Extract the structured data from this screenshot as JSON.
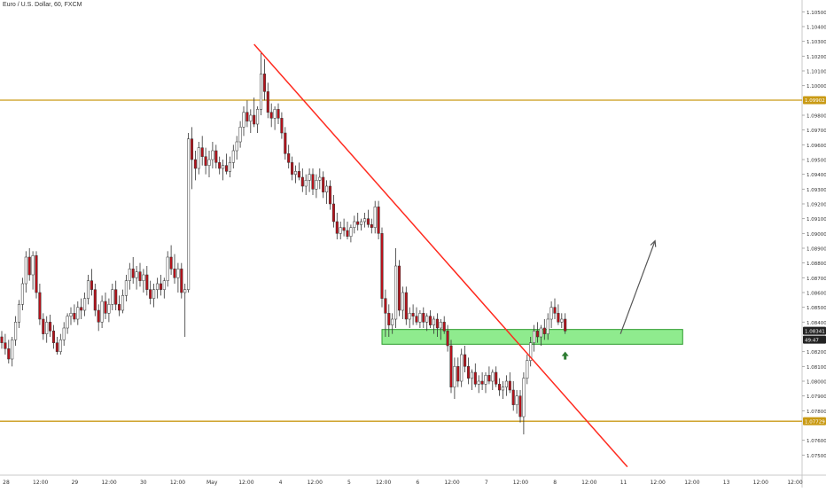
{
  "header": {
    "title": "Euro / U.S. Dollar, 60, FXCM"
  },
  "colors": {
    "background": "#ffffff",
    "bull_candle": "#ffffff",
    "bear_candle": "#b5121b",
    "wick": "#333333",
    "level_line": "#c99a14",
    "trendline": "#ff2a1f",
    "zone_fill": "#7be87a",
    "zone_border": "#2e9c2e",
    "projection_arrow": "#555555",
    "up_marker": "#2e7d32",
    "price_badge": "#222222",
    "level_badge": "#c99a14"
  },
  "chart_data": {
    "type": "candlestick",
    "title": "Euro / U.S. Dollar, 60, FXCM",
    "interval": "60",
    "y_axis": {
      "ylim": [
        1.074,
        1.1055
      ],
      "ticks": [
        "1.10500",
        "1.10400",
        "1.10300",
        "1.10200",
        "1.10100",
        "1.10000",
        "1.09800",
        "1.09700",
        "1.09600",
        "1.09500",
        "1.09400",
        "1.09300",
        "1.09200",
        "1.09100",
        "1.09000",
        "1.08900",
        "1.08800",
        "1.08700",
        "1.08600",
        "1.08500",
        "1.08400",
        "1.08200",
        "1.08100",
        "1.08000",
        "1.07900",
        "1.07800",
        "1.07600",
        "1.07500"
      ],
      "position": "right"
    },
    "x_axis": {
      "tick_labels": [
        "28",
        "12:00",
        "29",
        "12:00",
        "30",
        "12:00",
        "May",
        "12:00",
        "4",
        "12:00",
        "5",
        "12:00",
        "6",
        "12:00",
        "7",
        "12:00",
        "8",
        "12:00",
        "11",
        "12:00",
        "12:00",
        "13",
        "12:00",
        "12:00"
      ]
    },
    "price_labels": {
      "current": "1.08341",
      "countdown": "49:47",
      "resistance": "1.09902",
      "support": "1.07729"
    },
    "levels": [
      {
        "name": "resistance",
        "value": 1.09902
      },
      {
        "name": "support",
        "value": 1.07729
      }
    ],
    "zone": {
      "low": 1.0825,
      "high": 1.0835,
      "bar_start": 110,
      "bar_end": 197
    },
    "trendline": {
      "points": [
        {
          "bar": 73,
          "price": 1.1028
        },
        {
          "bar": 181,
          "price": 1.0742
        }
      ]
    },
    "projection": {
      "from": {
        "bar": 179,
        "price": 1.0832
      },
      "to": {
        "bar": 189,
        "price": 1.0895
      }
    },
    "ohlc": [
      [
        1.083,
        1.0834,
        1.0822,
        1.0826
      ],
      [
        1.0826,
        1.0832,
        1.0818,
        1.0822
      ],
      [
        1.0822,
        1.0828,
        1.0812,
        1.0815
      ],
      [
        1.0815,
        1.083,
        1.081,
        1.0828
      ],
      [
        1.0828,
        1.0844,
        1.0824,
        1.084
      ],
      [
        1.084,
        1.0855,
        1.0836,
        1.0852
      ],
      [
        1.0852,
        1.087,
        1.0848,
        1.0866
      ],
      [
        1.0866,
        1.0888,
        1.086,
        1.0884
      ],
      [
        1.0884,
        1.089,
        1.0868,
        1.0872
      ],
      [
        1.0872,
        1.0888,
        1.0862,
        1.0885
      ],
      [
        1.0885,
        1.0888,
        1.0856,
        1.086
      ],
      [
        1.086,
        1.0866,
        1.0838,
        1.0842
      ],
      [
        1.0842,
        1.0846,
        1.0828,
        1.0832
      ],
      [
        1.0832,
        1.0844,
        1.0826,
        1.084
      ],
      [
        1.084,
        1.0845,
        1.083,
        1.0834
      ],
      [
        1.0834,
        1.0838,
        1.0822,
        1.0826
      ],
      [
        1.0826,
        1.083,
        1.0818,
        1.082
      ],
      [
        1.082,
        1.0832,
        1.0818,
        1.0828
      ],
      [
        1.0828,
        1.084,
        1.0824,
        1.0836
      ],
      [
        1.0836,
        1.0846,
        1.0832,
        1.0844
      ],
      [
        1.0844,
        1.085,
        1.0838,
        1.0846
      ],
      [
        1.0846,
        1.0852,
        1.084,
        1.0842
      ],
      [
        1.0842,
        1.0854,
        1.0838,
        1.085
      ],
      [
        1.085,
        1.0856,
        1.0842,
        1.0848
      ],
      [
        1.0848,
        1.086,
        1.0844,
        1.0856
      ],
      [
        1.0856,
        1.0872,
        1.0852,
        1.0868
      ],
      [
        1.0868,
        1.0876,
        1.0858,
        1.0862
      ],
      [
        1.0862,
        1.0866,
        1.0844,
        1.0848
      ],
      [
        1.0848,
        1.0852,
        1.0834,
        1.084
      ],
      [
        1.084,
        1.0858,
        1.0836,
        1.0854
      ],
      [
        1.0854,
        1.086,
        1.0842,
        1.0846
      ],
      [
        1.0846,
        1.0856,
        1.084,
        1.0852
      ],
      [
        1.0852,
        1.0866,
        1.0848,
        1.0862
      ],
      [
        1.0862,
        1.0868,
        1.0848,
        1.0852
      ],
      [
        1.0852,
        1.0858,
        1.0844,
        1.0848
      ],
      [
        1.0848,
        1.0862,
        1.0846,
        1.0858
      ],
      [
        1.0858,
        1.0872,
        1.0854,
        1.0868
      ],
      [
        1.0868,
        1.088,
        1.0862,
        1.0876
      ],
      [
        1.0876,
        1.0884,
        1.0866,
        1.087
      ],
      [
        1.087,
        1.0878,
        1.0862,
        1.0874
      ],
      [
        1.0874,
        1.088,
        1.0864,
        1.0868
      ],
      [
        1.0868,
        1.0876,
        1.086,
        1.0872
      ],
      [
        1.0872,
        1.0878,
        1.0858,
        1.0862
      ],
      [
        1.0862,
        1.0868,
        1.0852,
        1.0856
      ],
      [
        1.0856,
        1.0866,
        1.085,
        1.0862
      ],
      [
        1.0862,
        1.087,
        1.0856,
        1.0866
      ],
      [
        1.0866,
        1.0872,
        1.0858,
        1.0862
      ],
      [
        1.0862,
        1.087,
        1.0856,
        1.0868
      ],
      [
        1.0868,
        1.0888,
        1.0864,
        1.0884
      ],
      [
        1.0884,
        1.0892,
        1.0872,
        1.0876
      ],
      [
        1.0876,
        1.0886,
        1.0866,
        1.087
      ],
      [
        1.087,
        1.088,
        1.086,
        1.0876
      ],
      [
        1.0876,
        1.088,
        1.0856,
        1.086
      ],
      [
        1.086,
        1.0866,
        1.083,
        1.0862
      ],
      [
        1.0862,
        1.0968,
        1.086,
        1.0964
      ],
      [
        1.0964,
        1.0972,
        1.093,
        1.095
      ],
      [
        1.095,
        1.0956,
        1.0936,
        1.0944
      ],
      [
        1.0944,
        1.0962,
        1.094,
        1.0958
      ],
      [
        1.0958,
        1.0966,
        1.0946,
        1.0952
      ],
      [
        1.0952,
        1.0958,
        1.094,
        1.0946
      ],
      [
        1.0946,
        1.0956,
        1.0938,
        1.095
      ],
      [
        1.095,
        1.0962,
        1.0944,
        1.0956
      ],
      [
        1.0956,
        1.096,
        1.0944,
        1.0948
      ],
      [
        1.0948,
        1.0952,
        1.094,
        1.0944
      ],
      [
        1.0944,
        1.095,
        1.0936,
        1.0946
      ],
      [
        1.0946,
        1.0954,
        1.094,
        1.0942
      ],
      [
        1.0942,
        1.0952,
        1.0938,
        1.0948
      ],
      [
        1.0948,
        1.096,
        1.0944,
        1.0956
      ],
      [
        1.0956,
        1.0966,
        1.095,
        1.0962
      ],
      [
        1.0962,
        1.0976,
        1.0958,
        1.0972
      ],
      [
        1.0972,
        1.0986,
        1.0966,
        1.0982
      ],
      [
        1.0982,
        1.099,
        1.0972,
        1.0976
      ],
      [
        1.0976,
        1.0984,
        1.0968,
        1.098
      ],
      [
        1.098,
        1.0992,
        1.0972,
        1.0974
      ],
      [
        1.0974,
        1.0986,
        1.0968,
        1.0984
      ],
      [
        1.0984,
        1.1022,
        1.098,
        1.1008
      ],
      [
        1.1008,
        1.1018,
        1.099,
        1.0996
      ],
      [
        1.0996,
        1.1002,
        1.0978,
        1.0982
      ],
      [
        1.0982,
        1.0988,
        1.0972,
        1.0978
      ],
      [
        1.0978,
        1.0986,
        1.097,
        1.0984
      ],
      [
        1.0984,
        1.0988,
        1.0974,
        1.0978
      ],
      [
        1.0978,
        1.0982,
        1.0964,
        1.0968
      ],
      [
        1.0968,
        1.0972,
        1.095,
        1.0954
      ],
      [
        1.0954,
        1.096,
        1.0944,
        1.0948
      ],
      [
        1.0948,
        1.0952,
        1.0936,
        1.094
      ],
      [
        1.094,
        1.0946,
        1.0934,
        1.0942
      ],
      [
        1.0942,
        1.0948,
        1.0936,
        1.0938
      ],
      [
        1.0938,
        1.0944,
        1.0928,
        1.0932
      ],
      [
        1.0932,
        1.094,
        1.0926,
        1.0936
      ],
      [
        1.0936,
        1.0944,
        1.0928,
        1.094
      ],
      [
        1.094,
        1.0944,
        1.0926,
        1.093
      ],
      [
        1.093,
        1.094,
        1.0924,
        1.0936
      ],
      [
        1.0936,
        1.0944,
        1.093,
        1.0938
      ],
      [
        1.0938,
        1.0942,
        1.0924,
        1.0928
      ],
      [
        1.0928,
        1.0936,
        1.092,
        1.0932
      ],
      [
        1.0932,
        1.0936,
        1.0916,
        1.092
      ],
      [
        1.092,
        1.0926,
        1.0904,
        1.0908
      ],
      [
        1.0908,
        1.0914,
        1.0896,
        1.09
      ],
      [
        1.09,
        1.0908,
        1.0896,
        1.0904
      ],
      [
        1.0904,
        1.091,
        1.0898,
        1.0902
      ],
      [
        1.0902,
        1.0908,
        1.0896,
        1.0898
      ],
      [
        1.0898,
        1.0906,
        1.0894,
        1.0904
      ],
      [
        1.0904,
        1.0912,
        1.09,
        1.0908
      ],
      [
        1.0908,
        1.0914,
        1.0902,
        1.0906
      ],
      [
        1.0906,
        1.091,
        1.0902,
        1.0908
      ],
      [
        1.0908,
        1.0914,
        1.0904,
        1.091
      ],
      [
        1.091,
        1.0916,
        1.0904,
        1.0906
      ],
      [
        1.0906,
        1.091,
        1.09,
        1.0904
      ],
      [
        1.0904,
        1.0922,
        1.09,
        1.0918
      ],
      [
        1.0918,
        1.0922,
        1.0896,
        1.09
      ],
      [
        1.09,
        1.0904,
        1.085,
        1.0856
      ],
      [
        1.0856,
        1.0862,
        1.083,
        1.0846
      ],
      [
        1.0846,
        1.0852,
        1.083,
        1.0838
      ],
      [
        1.0838,
        1.0846,
        1.0832,
        1.0842
      ],
      [
        1.0842,
        1.089,
        1.0836,
        1.0878
      ],
      [
        1.0878,
        1.0882,
        1.0844,
        1.0848
      ],
      [
        1.0848,
        1.0864,
        1.0842,
        1.086
      ],
      [
        1.086,
        1.0864,
        1.0838,
        1.0842
      ],
      [
        1.0842,
        1.085,
        1.0836,
        1.0846
      ],
      [
        1.0846,
        1.0852,
        1.0838,
        1.0844
      ],
      [
        1.0844,
        1.085,
        1.0838,
        1.084
      ],
      [
        1.084,
        1.0848,
        1.0836,
        1.0846
      ],
      [
        1.0846,
        1.085,
        1.0836,
        1.084
      ],
      [
        1.084,
        1.0846,
        1.0834,
        1.0844
      ],
      [
        1.0844,
        1.0848,
        1.0836,
        1.0838
      ],
      [
        1.0838,
        1.0844,
        1.0832,
        1.0842
      ],
      [
        1.0842,
        1.0846,
        1.083,
        1.0836
      ],
      [
        1.0836,
        1.0842,
        1.0828,
        1.084
      ],
      [
        1.084,
        1.0844,
        1.0832,
        1.0834
      ],
      [
        1.0834,
        1.0838,
        1.082,
        1.0824
      ],
      [
        1.0824,
        1.0828,
        1.0792,
        1.0796
      ],
      [
        1.0796,
        1.0816,
        1.0788,
        1.081
      ],
      [
        1.081,
        1.0816,
        1.0796,
        1.08
      ],
      [
        1.08,
        1.0822,
        1.0796,
        1.0818
      ],
      [
        1.0818,
        1.0824,
        1.0806,
        1.081
      ],
      [
        1.081,
        1.0816,
        1.0798,
        1.0802
      ],
      [
        1.0802,
        1.0808,
        1.0794,
        1.0806
      ],
      [
        1.0806,
        1.0812,
        1.0796,
        1.0798
      ],
      [
        1.0798,
        1.0804,
        1.0792,
        1.08
      ],
      [
        1.08,
        1.0806,
        1.0794,
        1.0798
      ],
      [
        1.0798,
        1.0806,
        1.0792,
        1.0804
      ],
      [
        1.0804,
        1.081,
        1.0798,
        1.08
      ],
      [
        1.08,
        1.0808,
        1.0794,
        1.0806
      ],
      [
        1.0806,
        1.081,
        1.0796,
        1.0798
      ],
      [
        1.0798,
        1.0802,
        1.079,
        1.0794
      ],
      [
        1.0794,
        1.08,
        1.0788,
        1.0796
      ],
      [
        1.0796,
        1.0804,
        1.079,
        1.08
      ],
      [
        1.08,
        1.0806,
        1.0792,
        1.0794
      ],
      [
        1.0794,
        1.08,
        1.078,
        1.0784
      ],
      [
        1.0784,
        1.0794,
        1.0778,
        1.079
      ],
      [
        1.079,
        1.0794,
        1.0772,
        1.0776
      ],
      [
        1.0776,
        1.0806,
        1.0764,
        1.0802
      ],
      [
        1.0802,
        1.0818,
        1.0798,
        1.0814
      ],
      [
        1.0814,
        1.083,
        1.081,
        1.0826
      ],
      [
        1.0826,
        1.0838,
        1.082,
        1.0834
      ],
      [
        1.0834,
        1.084,
        1.0826,
        1.083
      ],
      [
        1.083,
        1.0838,
        1.0824,
        1.0836
      ],
      [
        1.0836,
        1.0842,
        1.0828,
        1.0832
      ],
      [
        1.0832,
        1.0846,
        1.0828,
        1.0842
      ],
      [
        1.0842,
        1.0854,
        1.0836,
        1.085
      ],
      [
        1.085,
        1.0856,
        1.0842,
        1.0846
      ],
      [
        1.0846,
        1.0852,
        1.0838,
        1.084
      ],
      [
        1.084,
        1.0846,
        1.0836,
        1.0842
      ],
      [
        1.0842,
        1.0846,
        1.0832,
        1.0834
      ]
    ]
  }
}
